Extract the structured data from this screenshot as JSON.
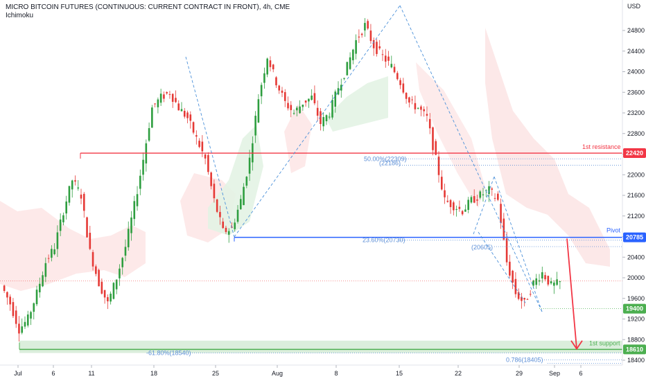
{
  "header": {
    "title": "MICRO BITCOIN FUTURES (CONTINUOUS: CURRENT CONTRACT IN FRONT), 4h, CME",
    "indicator": "Ichimoku"
  },
  "chart_data": {
    "type": "candlestick",
    "currency": "USD",
    "y_ticks": [
      18400,
      18800,
      19200,
      19600,
      20000,
      20400,
      20800,
      21200,
      21600,
      22000,
      22400,
      22800,
      23200,
      23600,
      24000,
      24400,
      24800
    ],
    "x_ticks": [
      "Jul",
      "6",
      "11",
      "18",
      "25",
      "Aug",
      "8",
      "15",
      "22",
      "29",
      "Sep",
      "6"
    ],
    "levels": [
      {
        "name": "1st resistance",
        "value": 22420,
        "color": "#f23645"
      },
      {
        "name": "Pivot",
        "value": 20785,
        "color": "#2962ff"
      },
      {
        "name": "1st support",
        "value": 18610,
        "color": "#4caf50"
      },
      {
        "name": "",
        "value": 19400,
        "color": "#4caf50"
      }
    ],
    "fib_labels": [
      {
        "text": "50.00%(22309)",
        "value": 22309
      },
      {
        "text": "(22186)",
        "value": 22186
      },
      {
        "text": "23.60%(20730)",
        "value": 20730
      },
      {
        "text": "(20605)",
        "value": 20605
      },
      {
        "text": "-61.80%(18540)",
        "value": 18540
      },
      {
        "text": "0.786(18405)",
        "value": 18405
      }
    ],
    "trend_path_dates": [
      0,
      0.12,
      0.18,
      0.3,
      0.58,
      0.55,
      0.78,
      0.83
    ],
    "close_series": [
      19850,
      19500,
      19000,
      19200,
      19700,
      20300,
      20600,
      21300,
      21900,
      21600,
      20500,
      19900,
      19500,
      20000,
      20600,
      21400,
      22300,
      23300,
      23500,
      23600,
      23300,
      23100,
      22700,
      22300,
      21500,
      20900,
      20950,
      21500,
      22300,
      23500,
      24300,
      23800,
      23400,
      23200,
      23400,
      23500,
      23000,
      23200,
      23700,
      24100,
      24600,
      24900,
      24500,
      24300,
      24100,
      23800,
      23400,
      23300,
      23100,
      22300,
      21500,
      21400,
      21300,
      21500,
      21600,
      21700,
      21500,
      20300,
      19700,
      19500,
      19900,
      20100,
      19850,
      19900
    ],
    "annotation_texts": {
      "resistance": "1st resistance",
      "pivot": "Pivot",
      "support": "1st support"
    },
    "value_tags": [
      "22420",
      "20785",
      "19400",
      "18610"
    ]
  }
}
